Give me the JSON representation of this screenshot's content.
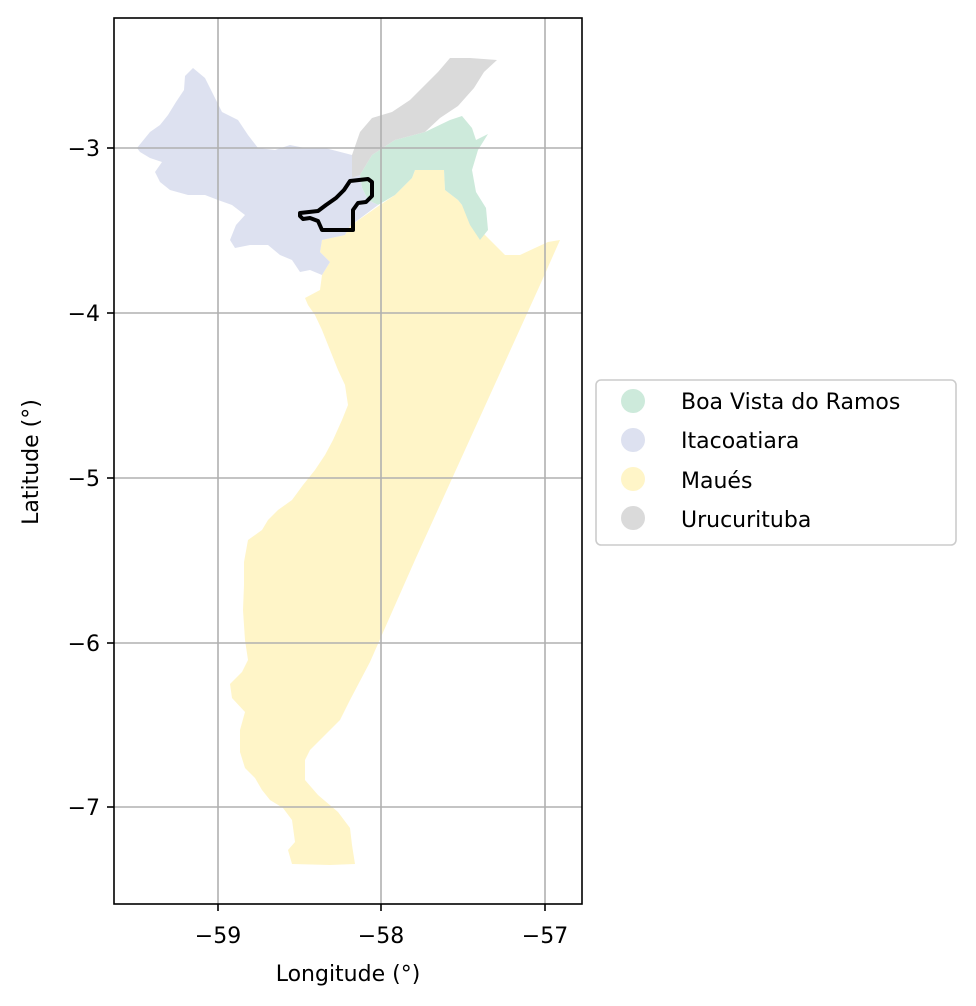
{
  "map": {
    "xlabel": "Longitude (°)",
    "ylabel": "Latitude (°)",
    "xlim": [
      -59.62,
      -56.78
    ],
    "ylim": [
      -7.6,
      -2.2
    ],
    "xticks": [
      {
        "value": -59,
        "label": "−59"
      },
      {
        "value": -58,
        "label": "−58"
      },
      {
        "value": -57,
        "label": "−57"
      }
    ],
    "yticks": [
      {
        "value": -3,
        "label": "−3"
      },
      {
        "value": -4,
        "label": "−4"
      },
      {
        "value": -5,
        "label": "−5"
      },
      {
        "value": -6,
        "label": "−6"
      },
      {
        "value": -7,
        "label": "−7"
      }
    ],
    "grid": true,
    "legend_position": "right-center",
    "regions": [
      {
        "name": "Boa Vista do Ramos",
        "color": "#cdeadb"
      },
      {
        "name": "Itacoatiara",
        "color": "#dde1f0"
      },
      {
        "name": "Maués",
        "color": "#fff5c8"
      },
      {
        "name": "Urucurituba",
        "color": "#dadada"
      }
    ],
    "highlight_outline_color": "#000000"
  }
}
